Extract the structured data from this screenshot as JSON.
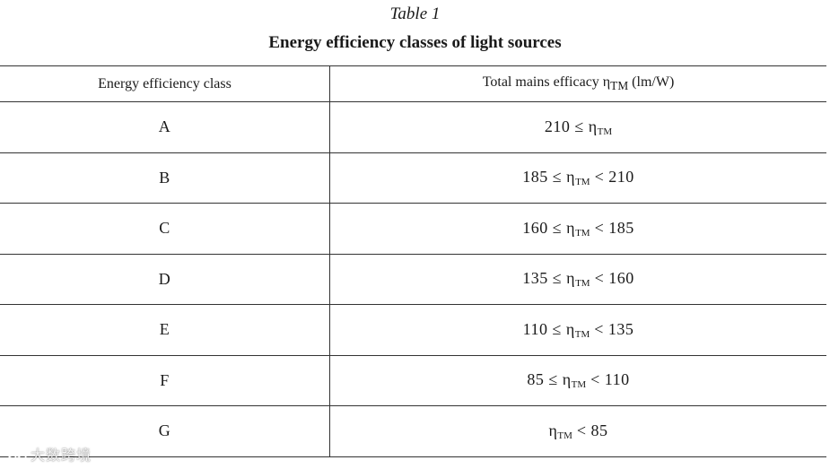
{
  "caption": "Table 1",
  "title": "Energy efficiency classes of light sources",
  "table": {
    "headers": {
      "class": "Energy efficiency class",
      "efficacy_prefix": "Total mains efficacy η",
      "efficacy_sub": "TM",
      "efficacy_suffix": " (lm/W)"
    },
    "rows": [
      {
        "class": "A",
        "pre": "210 ≤ η",
        "sub": "TM",
        "post": ""
      },
      {
        "class": "B",
        "pre": "185 ≤ η",
        "sub": "TM",
        "post": " < 210"
      },
      {
        "class": "C",
        "pre": "160 ≤ η",
        "sub": "TM",
        "post": " < 185"
      },
      {
        "class": "D",
        "pre": "135 ≤ η",
        "sub": "TM",
        "post": " < 160"
      },
      {
        "class": "E",
        "pre": "110 ≤ η",
        "sub": "TM",
        "post": " < 135"
      },
      {
        "class": "F",
        "pre": "85 ≤ η",
        "sub": "TM",
        "post": " < 110"
      },
      {
        "class": "G",
        "pre": "η",
        "sub": "TM",
        "post": " < 85"
      }
    ]
  },
  "watermark": {
    "text": "大数跨境",
    "icon": "chat-bubble-icon"
  }
}
